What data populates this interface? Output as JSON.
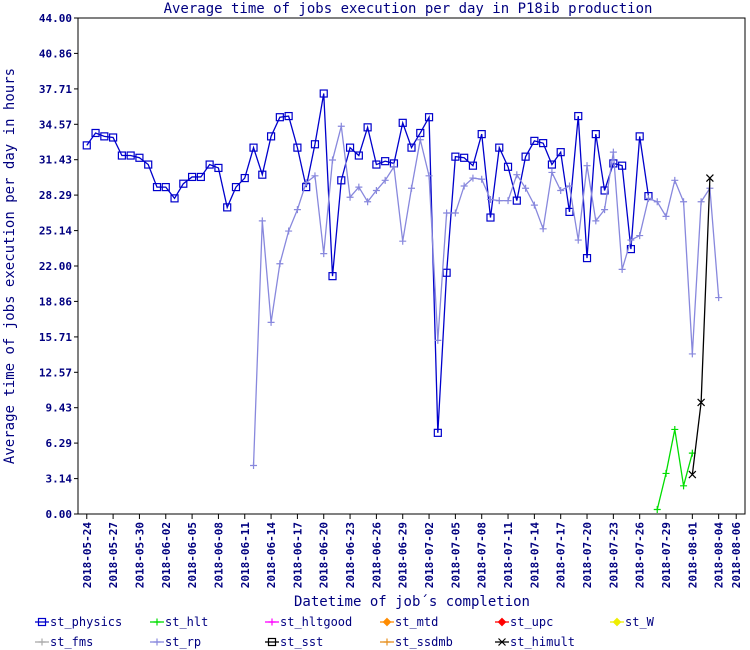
{
  "chart_data": {
    "type": "line",
    "title": "Average time of jobs execution per day in P18ib production",
    "x_label": "Datetime of job´s completion",
    "y_label": "Average time of jobs execution per day in hours",
    "x": [
      "2018-05-24",
      "2018-05-25",
      "2018-05-26",
      "2018-05-27",
      "2018-05-28",
      "2018-05-29",
      "2018-05-30",
      "2018-05-31",
      "2018-06-01",
      "2018-06-02",
      "2018-06-03",
      "2018-06-04",
      "2018-06-05",
      "2018-06-06",
      "2018-06-07",
      "2018-06-08",
      "2018-06-09",
      "2018-06-10",
      "2018-06-11",
      "2018-06-12",
      "2018-06-13",
      "2018-06-14",
      "2018-06-15",
      "2018-06-16",
      "2018-06-17",
      "2018-06-18",
      "2018-06-19",
      "2018-06-20",
      "2018-06-21",
      "2018-06-22",
      "2018-06-23",
      "2018-06-24",
      "2018-06-25",
      "2018-06-26",
      "2018-06-27",
      "2018-06-28",
      "2018-06-29",
      "2018-06-30",
      "2018-07-01",
      "2018-07-02",
      "2018-07-03",
      "2018-07-04",
      "2018-07-05",
      "2018-07-06",
      "2018-07-07",
      "2018-07-08",
      "2018-07-09",
      "2018-07-10",
      "2018-07-11",
      "2018-07-12",
      "2018-07-13",
      "2018-07-14",
      "2018-07-15",
      "2018-07-16",
      "2018-07-17",
      "2018-07-18",
      "2018-07-19",
      "2018-07-20",
      "2018-07-21",
      "2018-07-22",
      "2018-07-23",
      "2018-07-24",
      "2018-07-25",
      "2018-07-26",
      "2018-07-27",
      "2018-07-28",
      "2018-07-29",
      "2018-07-30",
      "2018-07-31",
      "2018-08-01",
      "2018-08-02",
      "2018-08-03",
      "2018-08-04"
    ],
    "xlim": [
      "2018-05-23",
      "2018-08-07"
    ],
    "xticks": [
      "2018-05-24",
      "2018-05-27",
      "2018-05-30",
      "2018-06-02",
      "2018-06-05",
      "2018-06-08",
      "2018-06-11",
      "2018-06-14",
      "2018-06-17",
      "2018-06-20",
      "2018-06-23",
      "2018-06-26",
      "2018-06-29",
      "2018-07-02",
      "2018-07-05",
      "2018-07-08",
      "2018-07-11",
      "2018-07-14",
      "2018-07-17",
      "2018-07-20",
      "2018-07-23",
      "2018-07-26",
      "2018-07-29",
      "2018-08-01",
      "2018-08-04",
      "2018-08-06"
    ],
    "ylim": [
      0,
      44
    ],
    "yticks": [
      {
        "value": 0,
        "label": "0.00"
      },
      3.14,
      6.29,
      9.43,
      12.57,
      15.71,
      18.86,
      {
        "value": 22,
        "label": "22.00"
      },
      25.14,
      28.29,
      31.43,
      34.57,
      37.71,
      40.86,
      {
        "value": 44,
        "label": "44.00"
      }
    ],
    "grid": false,
    "series": [
      {
        "name": "st_physics",
        "color": "#0000cc",
        "marker": "square",
        "values": [
          32.7,
          33.8,
          33.5,
          33.4,
          31.8,
          31.8,
          31.6,
          31.0,
          29.0,
          29.0,
          28.0,
          29.3,
          29.9,
          29.9,
          31.0,
          30.7,
          27.2,
          29.0,
          29.8,
          32.5,
          30.1,
          33.5,
          35.2,
          35.3,
          32.5,
          29.0,
          32.8,
          37.3,
          21.1,
          29.6,
          32.5,
          31.8,
          34.3,
          31.0,
          31.3,
          31.1,
          34.7,
          32.5,
          33.8,
          35.2,
          7.2,
          21.4,
          31.7,
          31.6,
          30.9,
          33.7,
          26.3,
          32.5,
          30.8,
          27.8,
          31.7,
          33.1,
          32.9,
          31.0,
          32.1,
          26.8,
          35.3,
          22.7,
          33.7,
          28.7,
          31.1,
          30.9,
          23.5,
          33.5,
          28.2,
          null,
          null,
          null,
          null,
          null,
          null,
          null,
          null
        ]
      },
      {
        "name": "st_hlt",
        "color": "#00dd00",
        "marker": "plus",
        "values": [
          null,
          null,
          null,
          null,
          null,
          null,
          null,
          null,
          null,
          null,
          null,
          null,
          null,
          null,
          null,
          null,
          null,
          null,
          null,
          null,
          null,
          null,
          null,
          null,
          null,
          null,
          null,
          null,
          null,
          null,
          null,
          null,
          null,
          null,
          null,
          null,
          null,
          null,
          null,
          null,
          null,
          null,
          null,
          null,
          null,
          null,
          null,
          null,
          null,
          null,
          null,
          null,
          null,
          null,
          null,
          null,
          null,
          null,
          null,
          null,
          null,
          null,
          null,
          null,
          null,
          0.4,
          3.6,
          7.5,
          2.5,
          5.4,
          null,
          null,
          null
        ]
      },
      {
        "name": "st_hltgood",
        "color": "#ff00ff",
        "marker": "plus",
        "values": [
          null,
          null,
          null,
          null,
          null,
          null,
          null,
          null,
          null,
          null,
          null,
          null,
          null,
          null,
          null,
          null,
          null,
          null,
          null,
          null,
          null,
          null,
          null,
          null,
          null,
          null,
          null,
          null,
          null,
          null,
          null,
          null,
          null,
          null,
          null,
          null,
          null,
          null,
          null,
          null,
          null,
          null,
          null,
          null,
          null,
          null,
          null,
          null,
          null,
          null,
          null,
          null,
          null,
          null,
          null,
          null,
          null,
          null,
          null,
          null,
          null,
          null,
          null,
          null,
          null,
          null,
          null,
          null,
          null,
          null,
          null,
          null,
          null
        ]
      },
      {
        "name": "st_mtd",
        "color": "#ff8c00",
        "marker": "diamond",
        "values": [
          null,
          null,
          null,
          null,
          null,
          null,
          null,
          null,
          null,
          null,
          null,
          null,
          null,
          null,
          null,
          null,
          null,
          null,
          null,
          null,
          null,
          null,
          null,
          null,
          null,
          null,
          null,
          null,
          null,
          null,
          null,
          null,
          null,
          null,
          null,
          null,
          null,
          null,
          null,
          null,
          null,
          null,
          null,
          null,
          null,
          null,
          null,
          null,
          null,
          null,
          null,
          null,
          null,
          null,
          null,
          null,
          null,
          null,
          null,
          null,
          null,
          null,
          null,
          null,
          null,
          null,
          null,
          null,
          null,
          null,
          null,
          null,
          null
        ]
      },
      {
        "name": "st_upc",
        "color": "#ff0000",
        "marker": "diamond",
        "values": [
          null,
          null,
          null,
          null,
          null,
          null,
          null,
          null,
          null,
          null,
          null,
          null,
          null,
          null,
          null,
          null,
          null,
          null,
          null,
          null,
          null,
          null,
          null,
          null,
          null,
          null,
          null,
          null,
          null,
          null,
          null,
          null,
          null,
          null,
          null,
          null,
          null,
          null,
          null,
          null,
          null,
          null,
          null,
          null,
          null,
          null,
          null,
          null,
          null,
          null,
          null,
          null,
          null,
          null,
          null,
          null,
          null,
          null,
          null,
          null,
          null,
          null,
          null,
          null,
          null,
          null,
          null,
          null,
          null,
          null,
          null,
          null,
          null
        ]
      },
      {
        "name": "st_W",
        "color": "#eeee00",
        "marker": "diamond",
        "values": [
          null,
          null,
          null,
          null,
          null,
          null,
          null,
          null,
          null,
          null,
          null,
          null,
          null,
          null,
          null,
          null,
          null,
          null,
          null,
          null,
          null,
          null,
          null,
          null,
          null,
          null,
          null,
          null,
          null,
          null,
          null,
          null,
          null,
          null,
          null,
          null,
          null,
          null,
          null,
          null,
          null,
          null,
          null,
          null,
          null,
          null,
          null,
          null,
          null,
          null,
          null,
          null,
          null,
          null,
          null,
          null,
          null,
          null,
          null,
          null,
          null,
          null,
          null,
          null,
          null,
          null,
          null,
          null,
          null,
          null,
          null,
          null,
          null
        ]
      },
      {
        "name": "st_fms",
        "color": "#aaaaaa",
        "marker": "plus",
        "values": [
          null,
          null,
          null,
          null,
          null,
          null,
          null,
          null,
          null,
          null,
          null,
          null,
          null,
          null,
          null,
          null,
          null,
          null,
          null,
          null,
          null,
          null,
          null,
          null,
          null,
          null,
          null,
          null,
          null,
          null,
          null,
          null,
          null,
          null,
          null,
          null,
          null,
          null,
          null,
          null,
          null,
          null,
          null,
          null,
          null,
          null,
          null,
          null,
          null,
          null,
          null,
          null,
          null,
          null,
          null,
          null,
          null,
          null,
          null,
          null,
          null,
          null,
          null,
          null,
          null,
          null,
          null,
          null,
          null,
          null,
          null,
          null,
          null
        ]
      },
      {
        "name": "st_rp",
        "color": "#8888dd",
        "marker": "plus",
        "values": [
          null,
          null,
          null,
          null,
          null,
          null,
          null,
          null,
          null,
          null,
          null,
          null,
          null,
          null,
          null,
          null,
          null,
          null,
          null,
          4.3,
          26.0,
          17.0,
          22.2,
          25.1,
          27.0,
          29.4,
          30.0,
          23.1,
          31.4,
          34.4,
          28.1,
          29.0,
          27.7,
          28.7,
          29.6,
          30.8,
          24.2,
          28.9,
          33.2,
          30.0,
          15.4,
          26.7,
          26.7,
          29.1,
          29.8,
          29.7,
          27.9,
          27.8,
          27.8,
          30.1,
          28.9,
          27.4,
          25.3,
          30.3,
          28.7,
          29.1,
          24.3,
          30.9,
          26.0,
          27.0,
          32.1,
          21.7,
          24.3,
          24.7,
          28.0,
          27.7,
          26.4,
          29.6,
          27.7,
          14.2,
          27.7,
          28.9,
          19.2
        ]
      },
      {
        "name": "st_sst",
        "color": "#000000",
        "marker": "square",
        "values": [
          null,
          null,
          null,
          null,
          null,
          null,
          null,
          null,
          null,
          null,
          null,
          null,
          null,
          null,
          null,
          null,
          null,
          null,
          null,
          null,
          null,
          null,
          null,
          null,
          null,
          null,
          null,
          null,
          null,
          null,
          null,
          null,
          null,
          null,
          null,
          null,
          null,
          null,
          null,
          null,
          null,
          null,
          null,
          null,
          null,
          null,
          null,
          null,
          null,
          null,
          null,
          null,
          null,
          null,
          null,
          null,
          null,
          null,
          null,
          null,
          null,
          null,
          null,
          null,
          null,
          null,
          null,
          null,
          null,
          null,
          null,
          null,
          null
        ]
      },
      {
        "name": "st_ssdmb",
        "color": "#e69020",
        "marker": "plus",
        "values": [
          null,
          null,
          null,
          null,
          null,
          null,
          null,
          null,
          null,
          null,
          null,
          null,
          null,
          null,
          null,
          null,
          null,
          null,
          null,
          null,
          null,
          null,
          null,
          null,
          null,
          null,
          null,
          null,
          null,
          null,
          null,
          null,
          null,
          null,
          null,
          null,
          null,
          null,
          null,
          null,
          null,
          null,
          null,
          null,
          null,
          null,
          null,
          null,
          null,
          null,
          null,
          null,
          null,
          null,
          null,
          null,
          null,
          null,
          null,
          null,
          null,
          null,
          null,
          null,
          null,
          null,
          null,
          null,
          null,
          null,
          null,
          null,
          null
        ]
      },
      {
        "name": "st_himult",
        "color": "#000000",
        "marker": "cross",
        "values": [
          null,
          null,
          null,
          null,
          null,
          null,
          null,
          null,
          null,
          null,
          null,
          null,
          null,
          null,
          null,
          null,
          null,
          null,
          null,
          null,
          null,
          null,
          null,
          null,
          null,
          null,
          null,
          null,
          null,
          null,
          null,
          null,
          null,
          null,
          null,
          null,
          null,
          null,
          null,
          null,
          null,
          null,
          null,
          null,
          null,
          null,
          null,
          null,
          null,
          null,
          null,
          null,
          null,
          null,
          null,
          null,
          null,
          null,
          null,
          null,
          null,
          null,
          null,
          null,
          null,
          null,
          null,
          null,
          null,
          3.5,
          9.9,
          29.8,
          null
        ]
      }
    ]
  }
}
